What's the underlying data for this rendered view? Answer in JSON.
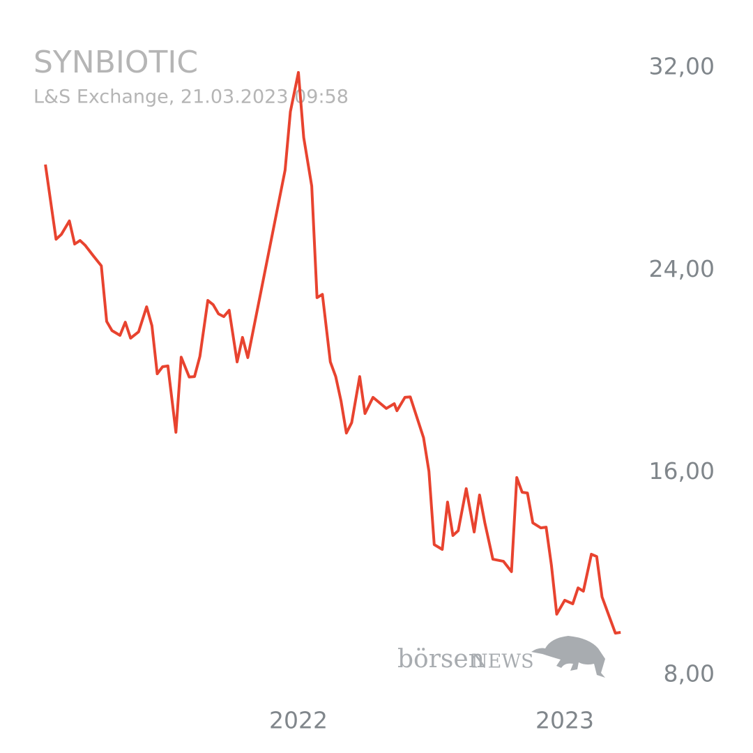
{
  "chart_data": {
    "type": "line",
    "title": "SYNBIOTIC",
    "subtitle": "L&S Exchange, 21.03.2023 09:58",
    "watermark": [
      "börsen",
      "NEWS"
    ],
    "color": "#e8432f",
    "x": [
      2021.05,
      2021.09,
      2021.11,
      2021.14,
      2021.16,
      2021.18,
      2021.2,
      2021.23,
      2021.26,
      2021.28,
      2021.3,
      2021.33,
      2021.35,
      2021.37,
      2021.4,
      2021.43,
      2021.45,
      2021.47,
      2021.49,
      2021.51,
      2021.54,
      2021.56,
      2021.59,
      2021.61,
      2021.63,
      2021.66,
      2021.68,
      2021.7,
      2021.72,
      2021.74,
      2021.77,
      2021.79,
      2021.81,
      2021.95,
      2021.97,
      2022.0,
      2022.02,
      2022.05,
      2022.07,
      2022.09,
      2022.12,
      2022.14,
      2022.16,
      2022.18,
      2022.2,
      2022.23,
      2022.25,
      2022.28,
      2022.33,
      2022.36,
      2022.37,
      2022.4,
      2022.42,
      2022.47,
      2022.49,
      2022.51,
      2022.54,
      2022.56,
      2022.58,
      2022.6,
      2022.63,
      2022.66,
      2022.68,
      2022.7,
      2022.73,
      2022.77,
      2022.8,
      2022.82,
      2022.84,
      2022.86,
      2022.88,
      2022.91,
      2022.93,
      2022.95,
      2022.97,
      2023.0,
      2023.03,
      2023.05,
      2023.07,
      2023.1,
      2023.12,
      2023.14,
      2023.19,
      2023.21
    ],
    "values": [
      28.17,
      25.22,
      25.41,
      25.94,
      25.03,
      25.17,
      24.97,
      24.56,
      24.17,
      21.97,
      21.61,
      21.42,
      21.94,
      21.31,
      21.56,
      22.55,
      21.8,
      19.9,
      20.18,
      20.21,
      17.59,
      20.56,
      19.77,
      19.79,
      20.59,
      22.8,
      22.63,
      22.27,
      22.16,
      22.41,
      20.37,
      21.34,
      20.54,
      27.95,
      30.26,
      31.81,
      29.24,
      27.32,
      22.91,
      23.04,
      20.37,
      19.79,
      18.83,
      17.56,
      17.97,
      19.79,
      18.33,
      18.97,
      18.53,
      18.72,
      18.44,
      18.97,
      18.99,
      17.37,
      16.05,
      13.15,
      12.96,
      14.83,
      13.51,
      13.7,
      15.36,
      13.65,
      15.11,
      14.01,
      12.57,
      12.49,
      12.08,
      15.8,
      15.22,
      15.19,
      14.01,
      13.81,
      13.84,
      12.33,
      10.4,
      10.95,
      10.81,
      11.44,
      11.31,
      12.77,
      12.68,
      11.08,
      9.65,
      9.68
    ],
    "xlim": [
      2020.95,
      2023.25
    ],
    "xticks": [
      2022,
      2023
    ],
    "ylim": [
      8,
      32
    ],
    "yticks": [
      {
        "value": 8,
        "label": "8,00"
      },
      {
        "value": 16,
        "label": "16,00"
      },
      {
        "value": 24,
        "label": "24,00"
      },
      {
        "value": 32,
        "label": "32,00"
      }
    ],
    "grid": false
  }
}
